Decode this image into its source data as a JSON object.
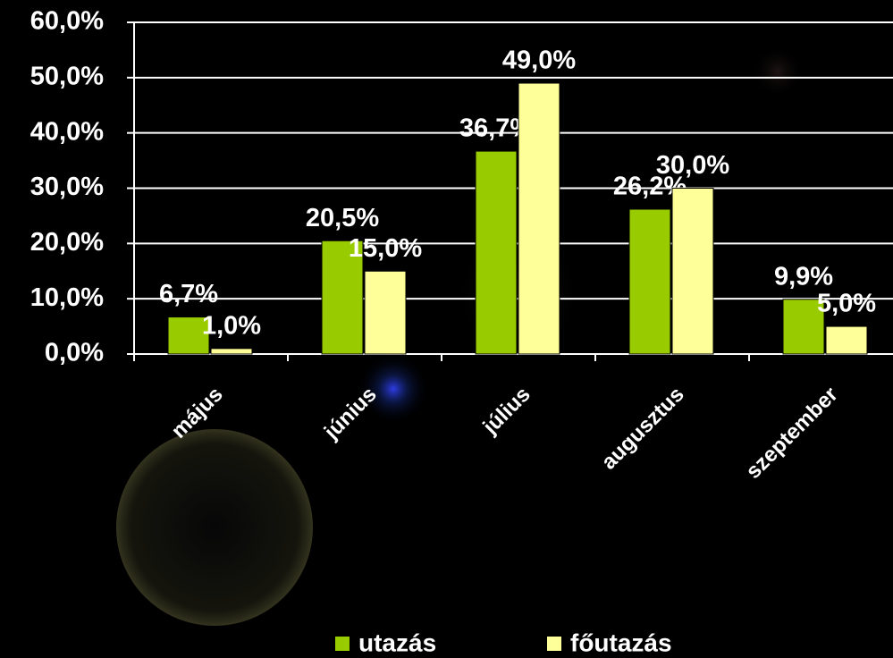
{
  "chart_data": {
    "type": "bar",
    "categories": [
      "május",
      "június",
      "július",
      "augusztus",
      "szeptember"
    ],
    "series": [
      {
        "name": "utazás",
        "color": "#99cc00",
        "values": [
          6.7,
          20.5,
          36.7,
          26.2,
          9.9
        ],
        "value_labels": [
          "6,7%",
          "20,5%",
          "36,7%",
          "26,2%",
          "9,9%"
        ]
      },
      {
        "name": "főutazás",
        "color": "#ffff99",
        "values": [
          1.0,
          15.0,
          49.0,
          30.0,
          5.0
        ],
        "value_labels": [
          "1,0%",
          "15,0%",
          "49,0%",
          "30,0%",
          "5,0%"
        ]
      }
    ],
    "ylim": [
      0,
      60
    ],
    "yticks": [
      {
        "value": 0,
        "label": "0,0%"
      },
      {
        "value": 10,
        "label": "10,0%"
      },
      {
        "value": 20,
        "label": "20,0%"
      },
      {
        "value": 30,
        "label": "30,0%"
      },
      {
        "value": 40,
        "label": "40,0%"
      },
      {
        "value": 50,
        "label": "50,0%"
      },
      {
        "value": 60,
        "label": "60,0%"
      }
    ],
    "grid": true,
    "legend": "bottom"
  }
}
